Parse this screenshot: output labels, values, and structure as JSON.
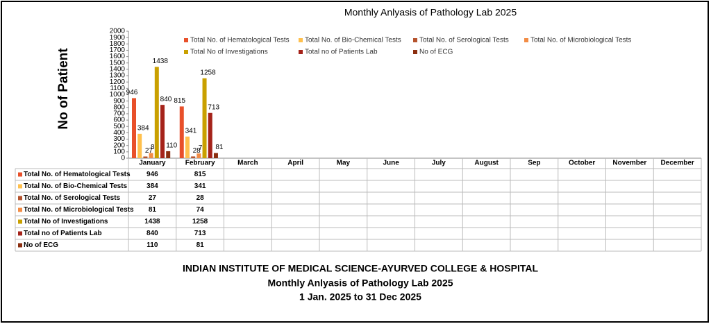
{
  "chart_data": {
    "type": "bar",
    "title": "Monthly Anlyasis of Pathology Lab  2025",
    "ylabel": "No of Patient",
    "categories": [
      "January",
      "February",
      "March",
      "April",
      "May",
      "June",
      "July",
      "August",
      "Sep",
      "October",
      "November",
      "December"
    ],
    "series": [
      {
        "name": "Total No. of Hematological Tests",
        "color": "#e8502a",
        "values": [
          946,
          815,
          null,
          null,
          null,
          null,
          null,
          null,
          null,
          null,
          null,
          null
        ]
      },
      {
        "name": "Total No. of Bio-Chemical Tests",
        "color": "#ffc04d",
        "values": [
          384,
          341,
          null,
          null,
          null,
          null,
          null,
          null,
          null,
          null,
          null,
          null
        ]
      },
      {
        "name": "Total No. of Serological Tests",
        "color": "#b5532d",
        "values": [
          27,
          28,
          null,
          null,
          null,
          null,
          null,
          null,
          null,
          null,
          null,
          null
        ]
      },
      {
        "name": "Total No. of Microbiological Tests",
        "color": "#f28c45",
        "values": [
          81,
          74,
          null,
          null,
          null,
          null,
          null,
          null,
          null,
          null,
          null,
          null
        ]
      },
      {
        "name": "Total No of  Investigations",
        "color": "#c9a000",
        "values": [
          1438,
          1258,
          null,
          null,
          null,
          null,
          null,
          null,
          null,
          null,
          null,
          null
        ]
      },
      {
        "name": "Total no of Patients Lab",
        "color": "#a5231a",
        "values": [
          840,
          713,
          null,
          null,
          null,
          null,
          null,
          null,
          null,
          null,
          null,
          null
        ]
      },
      {
        "name": "No of ECG",
        "color": "#8b2e0f",
        "values": [
          110,
          81,
          null,
          null,
          null,
          null,
          null,
          null,
          null,
          null,
          null,
          null
        ]
      }
    ],
    "ylim": [
      0,
      2000
    ],
    "yticks": [
      0,
      100,
      200,
      300,
      400,
      500,
      600,
      700,
      800,
      900,
      1000,
      1100,
      1200,
      1300,
      1400,
      1500,
      1600,
      1700,
      1800,
      1900,
      2000
    ],
    "footer": [
      "INDIAN INSTITUTE OF MEDICAL SCIENCE-AYURVED COLLEGE & HOSPITAL",
      "Monthly Anlyasis of Pathology Lab  2025",
      "1 Jan. 2025 to 31 Dec 2025"
    ]
  }
}
